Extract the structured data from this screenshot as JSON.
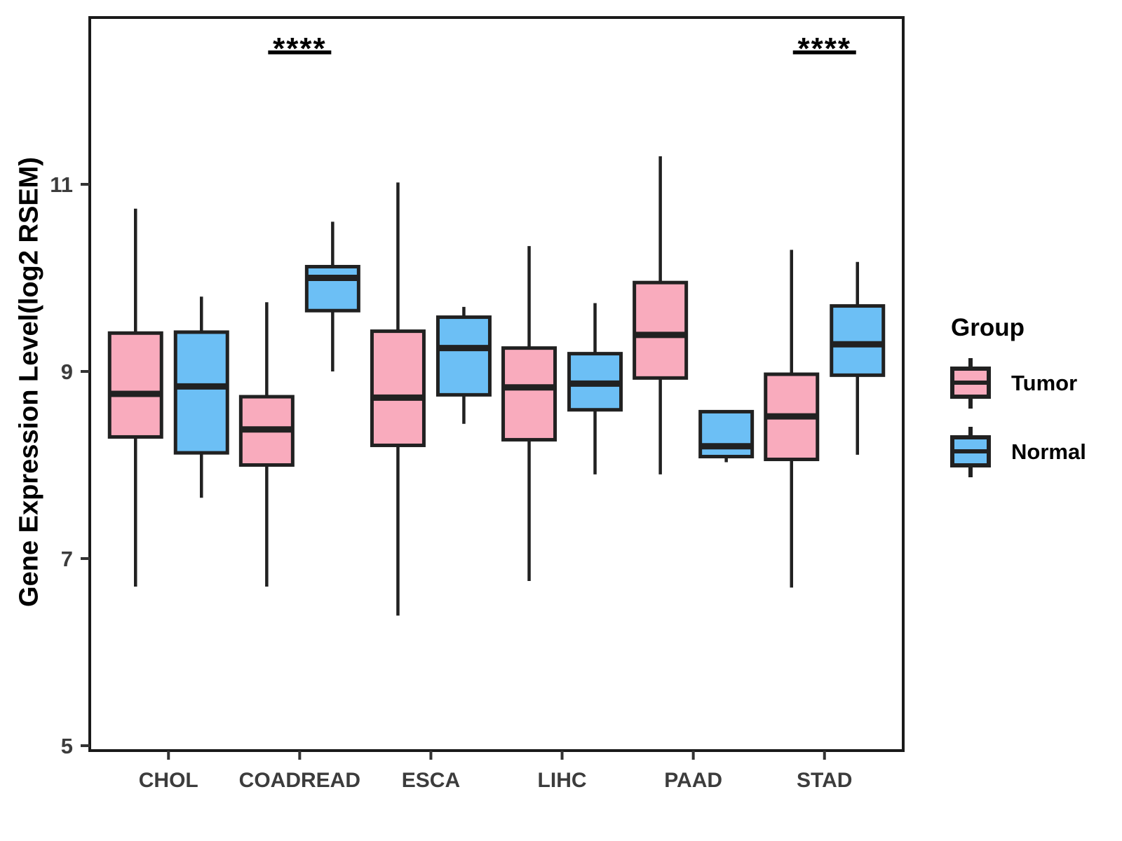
{
  "chart_data": {
    "type": "boxplot",
    "title": "",
    "xlabel": "",
    "ylabel": "Gene Expression Level(log2 RSEM)",
    "y_ticks": [
      5,
      7,
      9,
      11
    ],
    "y_range": [
      4.95,
      12.8
    ],
    "grid": "off",
    "categories": [
      "CHOL",
      "COADREAD",
      "ESCA",
      "LIHC",
      "PAAD",
      "STAD"
    ],
    "groups": [
      "Tumor",
      "Normal"
    ],
    "group_colors": {
      "Tumor": "#F9ABBD",
      "Normal": "#6CBFF5"
    },
    "box_border_color": "#212121",
    "axis_text_color": "#3C3C3C",
    "legend": {
      "title": "Group",
      "position": "right",
      "items": [
        "Tumor",
        "Normal"
      ]
    },
    "series": [
      {
        "name": "Tumor",
        "color": "#F9ABBD",
        "boxes": [
          {
            "category": "CHOL",
            "low": 6.7,
            "q1": 8.3,
            "median": 8.76,
            "q3": 9.41,
            "high": 10.74
          },
          {
            "category": "COADREAD",
            "low": 6.7,
            "q1": 8.0,
            "median": 8.38,
            "q3": 8.73,
            "high": 9.74
          },
          {
            "category": "ESCA",
            "low": 6.39,
            "q1": 8.21,
            "median": 8.72,
            "q3": 9.43,
            "high": 11.02
          },
          {
            "category": "LIHC",
            "low": 6.76,
            "q1": 8.27,
            "median": 8.83,
            "q3": 9.25,
            "high": 10.34
          },
          {
            "category": "PAAD",
            "low": 7.9,
            "q1": 8.93,
            "median": 9.39,
            "q3": 9.95,
            "high": 11.3
          },
          {
            "category": "STAD",
            "low": 6.69,
            "q1": 8.06,
            "median": 8.52,
            "q3": 8.97,
            "high": 10.3
          }
        ]
      },
      {
        "name": "Normal",
        "color": "#6CBFF5",
        "boxes": [
          {
            "category": "CHOL",
            "low": 7.65,
            "q1": 8.13,
            "median": 8.84,
            "q3": 9.42,
            "high": 9.8
          },
          {
            "category": "COADREAD",
            "low": 9.0,
            "q1": 9.65,
            "median": 10.0,
            "q3": 10.12,
            "high": 10.6
          },
          {
            "category": "ESCA",
            "low": 8.44,
            "q1": 8.75,
            "median": 9.25,
            "q3": 9.58,
            "high": 9.69
          },
          {
            "category": "LIHC",
            "low": 7.9,
            "q1": 8.59,
            "median": 8.87,
            "q3": 9.19,
            "high": 9.73
          },
          {
            "category": "PAAD",
            "low": 8.03,
            "q1": 8.09,
            "median": 8.2,
            "q3": 8.57,
            "high": 8.57
          },
          {
            "category": "STAD",
            "low": 8.11,
            "q1": 8.96,
            "median": 9.29,
            "q3": 9.7,
            "high": 10.17
          }
        ]
      }
    ],
    "significance": [
      {
        "category": "COADREAD",
        "label": "****"
      },
      {
        "category": "STAD",
        "label": "****"
      }
    ]
  }
}
